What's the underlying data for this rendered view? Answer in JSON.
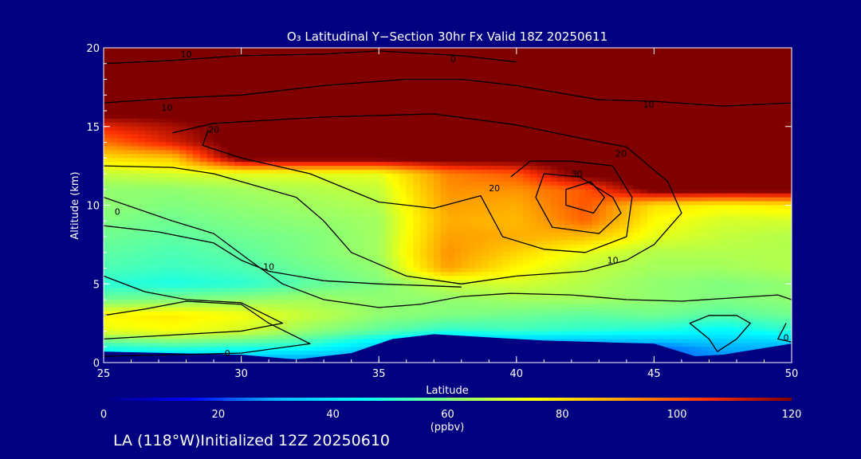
{
  "chart_data": {
    "type": "heatmap",
    "title": "O₃ Latitudinal Y−Section 30hr  Fx Valid 18Z 20250611",
    "xlabel": "Latitude",
    "ylabel": "Altitude (km)",
    "xlim": [
      25,
      50
    ],
    "ylim": [
      0,
      20
    ],
    "x_ticks": [
      "25",
      "30",
      "35",
      "40",
      "45",
      "50"
    ],
    "y_ticks": [
      "0",
      "5",
      "10",
      "15",
      "20"
    ],
    "colorbar": {
      "range": [
        0,
        120
      ],
      "ticks": [
        "0",
        "20",
        "40",
        "60",
        "80",
        "100",
        "120"
      ],
      "unit": "(ppbv)",
      "colors": [
        "#000080",
        "#0000ff",
        "#00b4ff",
        "#00ffff",
        "#80ff80",
        "#ffff00",
        "#ffa000",
        "#ff3000",
        "#800000"
      ]
    },
    "latitudes": [
      25,
      27.5,
      30,
      32.5,
      35,
      37.5,
      40,
      42.5,
      45,
      47.5,
      50
    ],
    "altitudes": [
      0,
      1,
      2,
      3,
      4,
      5,
      6,
      7,
      8,
      9,
      10,
      11,
      12,
      13,
      14,
      15,
      16,
      17,
      18,
      19,
      20
    ],
    "ozone_ppbv": [
      [
        30,
        28,
        26,
        22,
        25,
        20,
        20,
        20,
        22,
        25,
        26
      ],
      [
        50,
        52,
        50,
        48,
        36,
        20,
        22,
        22,
        24,
        30,
        30
      ],
      [
        72,
        74,
        70,
        62,
        56,
        50,
        52,
        50,
        48,
        44,
        50
      ],
      [
        76,
        78,
        74,
        68,
        62,
        60,
        58,
        56,
        58,
        55,
        58
      ],
      [
        58,
        60,
        62,
        64,
        62,
        62,
        64,
        64,
        62,
        60,
        62
      ],
      [
        50,
        48,
        50,
        56,
        60,
        68,
        70,
        66,
        62,
        60,
        62
      ],
      [
        54,
        52,
        54,
        58,
        62,
        90,
        76,
        68,
        64,
        64,
        66
      ],
      [
        56,
        54,
        56,
        60,
        64,
        92,
        82,
        72,
        66,
        66,
        66
      ],
      [
        58,
        56,
        58,
        60,
        64,
        90,
        88,
        85,
        72,
        68,
        66
      ],
      [
        60,
        58,
        60,
        62,
        64,
        88,
        86,
        98,
        75,
        70,
        70
      ],
      [
        62,
        60,
        62,
        64,
        66,
        90,
        88,
        100,
        80,
        76,
        78
      ],
      [
        62,
        62,
        64,
        66,
        68,
        92,
        92,
        100,
        125,
        125,
        125
      ],
      [
        68,
        70,
        72,
        72,
        72,
        94,
        100,
        125,
        125,
        125,
        125
      ],
      [
        80,
        84,
        125,
        125,
        125,
        125,
        125,
        125,
        125,
        125,
        125
      ],
      [
        96,
        110,
        125,
        125,
        125,
        125,
        125,
        125,
        125,
        125,
        125
      ],
      [
        108,
        115,
        125,
        125,
        125,
        125,
        125,
        125,
        125,
        125,
        125
      ],
      [
        125,
        125,
        125,
        125,
        125,
        125,
        125,
        125,
        125,
        125,
        125
      ],
      [
        125,
        125,
        125,
        125,
        125,
        125,
        125,
        125,
        125,
        125,
        125
      ],
      [
        125,
        125,
        125,
        125,
        125,
        125,
        125,
        125,
        125,
        125,
        125
      ],
      [
        125,
        125,
        125,
        125,
        125,
        125,
        125,
        125,
        125,
        125,
        125
      ],
      [
        125,
        125,
        125,
        125,
        125,
        125,
        125,
        125,
        125,
        125,
        125
      ]
    ],
    "terrain_km": [
      {
        "lat": 25,
        "alt": 0.7
      },
      {
        "lat": 30,
        "alt": 0.5
      },
      {
        "lat": 32,
        "alt": 0.2
      },
      {
        "lat": 34,
        "alt": 0.6
      },
      {
        "lat": 35.5,
        "alt": 1.5
      },
      {
        "lat": 37,
        "alt": 1.8
      },
      {
        "lat": 39,
        "alt": 1.6
      },
      {
        "lat": 41,
        "alt": 1.4
      },
      {
        "lat": 43,
        "alt": 1.3
      },
      {
        "lat": 45,
        "alt": 1.2
      },
      {
        "lat": 46.5,
        "alt": 0.4
      },
      {
        "lat": 47.5,
        "alt": 0.5
      },
      {
        "lat": 50,
        "alt": 1.2
      }
    ],
    "contours": [
      {
        "label": "10",
        "lat": 28.0,
        "alt": 19.6
      },
      {
        "label": "0",
        "lat": 37.7,
        "alt": 19.3
      },
      {
        "label": "10",
        "lat": 27.3,
        "alt": 16.2
      },
      {
        "label": "10",
        "lat": 44.8,
        "alt": 16.4
      },
      {
        "label": "20",
        "lat": 29.0,
        "alt": 14.8
      },
      {
        "label": "20",
        "lat": 43.8,
        "alt": 13.3
      },
      {
        "label": "30",
        "lat": 42.2,
        "alt": 12.0
      },
      {
        "label": "20",
        "lat": 39.2,
        "alt": 11.1
      },
      {
        "label": "0",
        "lat": 25.5,
        "alt": 9.6
      },
      {
        "label": "10",
        "lat": 31.0,
        "alt": 6.1
      },
      {
        "label": "10",
        "lat": 43.5,
        "alt": 6.5
      },
      {
        "label": "0",
        "lat": 29.5,
        "alt": 0.6
      },
      {
        "label": "0",
        "lat": 49.8,
        "alt": 1.6
      }
    ],
    "contour_lines": [
      [
        [
          25,
          19.0
        ],
        [
          27.5,
          19.2
        ],
        [
          30,
          19.5
        ],
        [
          33,
          19.6
        ],
        [
          35,
          19.8
        ],
        [
          38,
          19.5
        ],
        [
          40,
          19.1
        ]
      ],
      [
        [
          25,
          16.5
        ],
        [
          27.5,
          16.8
        ],
        [
          30,
          17.0
        ],
        [
          33,
          17.6
        ],
        [
          36,
          18.0
        ],
        [
          38,
          18.0
        ],
        [
          40,
          17.6
        ],
        [
          43,
          16.7
        ],
        [
          45,
          16.6
        ],
        [
          47.5,
          16.3
        ],
        [
          50,
          16.5
        ]
      ],
      [
        [
          27.5,
          14.6
        ],
        [
          29,
          15.2
        ],
        [
          33,
          15.6
        ],
        [
          37,
          15.8
        ],
        [
          40,
          15.1
        ],
        [
          42.5,
          14.2
        ],
        [
          44,
          13.7
        ],
        [
          45.5,
          11.5
        ],
        [
          46,
          9.5
        ],
        [
          45,
          7.5
        ],
        [
          44,
          6.5
        ],
        [
          42.5,
          5.8
        ],
        [
          40,
          5.5
        ],
        [
          38,
          5.0
        ]
      ],
      [
        [
          25,
          12.5
        ],
        [
          27.5,
          12.4
        ],
        [
          29,
          12.0
        ],
        [
          32,
          10.5
        ],
        [
          33,
          9.0
        ],
        [
          34,
          7.0
        ],
        [
          36,
          5.5
        ],
        [
          38,
          5.0
        ]
      ],
      [
        [
          28.8,
          14.8
        ],
        [
          28.6,
          13.8
        ],
        [
          30,
          13.0
        ],
        [
          32.5,
          12.0
        ],
        [
          35,
          10.2
        ],
        [
          37,
          9.8
        ],
        [
          38.7,
          10.6
        ],
        [
          39.5,
          8.0
        ],
        [
          41,
          7.2
        ],
        [
          42.5,
          7.0
        ],
        [
          44,
          8.0
        ],
        [
          44.2,
          10.5
        ],
        [
          43.5,
          12.5
        ],
        [
          42,
          12.8
        ],
        [
          40.5,
          12.8
        ],
        [
          39.8,
          11.8
        ]
      ],
      [
        [
          41,
          12.0
        ],
        [
          40.7,
          10.5
        ],
        [
          41.3,
          8.6
        ],
        [
          43,
          8.2
        ],
        [
          43.8,
          9.5
        ],
        [
          43.5,
          10.5
        ],
        [
          42.3,
          11.8
        ],
        [
          41,
          12.0
        ]
      ],
      [
        [
          41.8,
          11.0
        ],
        [
          41.8,
          10.0
        ],
        [
          42.8,
          9.5
        ],
        [
          43.2,
          10.5
        ],
        [
          42.7,
          11.5
        ],
        [
          41.8,
          11.0
        ]
      ],
      [
        [
          25,
          8.7
        ],
        [
          27,
          8.3
        ],
        [
          29,
          7.6
        ],
        [
          30,
          6.5
        ],
        [
          31,
          5.8
        ],
        [
          33,
          5.2
        ],
        [
          35,
          5.0
        ],
        [
          36.5,
          4.9
        ],
        [
          38,
          4.8
        ]
      ],
      [
        [
          25,
          10.5
        ],
        [
          27.5,
          9.0
        ],
        [
          29,
          8.2
        ],
        [
          30.3,
          6.5
        ],
        [
          31.5,
          5.0
        ],
        [
          33,
          4.0
        ],
        [
          35,
          3.5
        ],
        [
          36.5,
          3.7
        ],
        [
          38,
          4.2
        ],
        [
          39.8,
          4.4
        ],
        [
          42,
          4.3
        ],
        [
          44,
          4.0
        ],
        [
          46,
          3.9
        ],
        [
          49.5,
          4.3
        ],
        [
          50,
          4.0
        ]
      ],
      [
        [
          25,
          5.5
        ],
        [
          26.5,
          4.5
        ],
        [
          28,
          4.0
        ],
        [
          30,
          3.8
        ],
        [
          31.5,
          2.5
        ],
        [
          30,
          2.0
        ],
        [
          28,
          1.8
        ],
        [
          26,
          1.6
        ],
        [
          25,
          1.5
        ]
      ],
      [
        [
          25,
          3.0
        ],
        [
          26.5,
          3.4
        ],
        [
          28,
          3.9
        ],
        [
          30,
          3.7
        ],
        [
          31,
          2.5
        ],
        [
          32.5,
          1.2
        ],
        [
          30,
          0.6
        ],
        [
          27.5,
          0.5
        ],
        [
          25,
          0.4
        ]
      ],
      [
        [
          47,
          3.0
        ],
        [
          46.3,
          2.5
        ],
        [
          47,
          1.5
        ],
        [
          47.3,
          0.7
        ],
        [
          48,
          1.5
        ],
        [
          48.5,
          2.5
        ],
        [
          48,
          3.0
        ],
        [
          47,
          3.0
        ]
      ],
      [
        [
          49.8,
          2.5
        ],
        [
          49.5,
          1.5
        ],
        [
          50,
          1.3
        ]
      ]
    ]
  },
  "footer": {
    "text": "LA (118°W)Initialized 12Z 20250610"
  }
}
